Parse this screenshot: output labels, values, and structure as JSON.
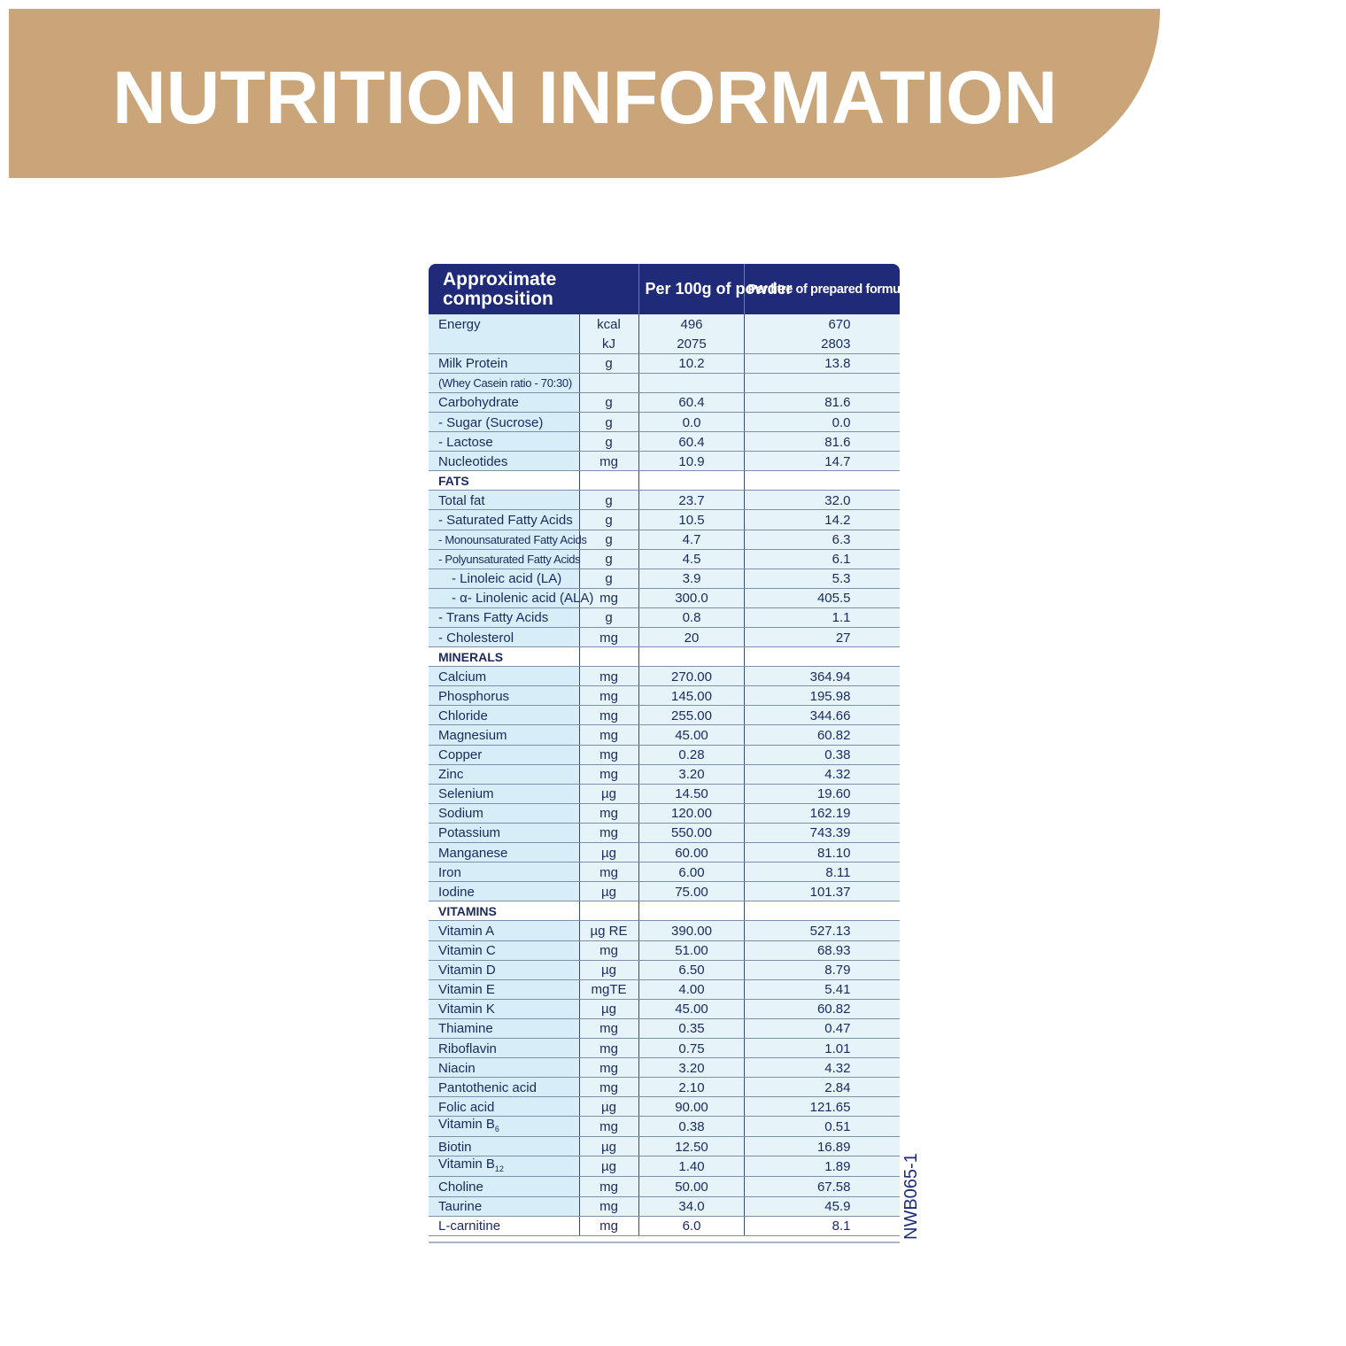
{
  "colors": {
    "banner": "#caa57a",
    "header": "#1f2a78",
    "text": "#1a2a5c",
    "row_shade": "#e6f4fa",
    "bottom_rule": "#aab4c8"
  },
  "banner": {
    "title": "NUTRITION INFORMATION"
  },
  "table": {
    "headers": [
      "Approximate composition",
      "Per 100g of powder",
      "Per litre of prepared formula"
    ],
    "rows": [
      {
        "name": "Energy",
        "unit": "kcal",
        "per100g": "496",
        "perLitre": "670",
        "style": "shade"
      },
      {
        "name": "",
        "unit": "kJ",
        "per100g": "2075",
        "perLitre": "2803",
        "style": "shade"
      },
      {
        "name": "Milk Protein",
        "unit": "g",
        "per100g": "10.2",
        "perLitre": "13.8",
        "style": "shade"
      },
      {
        "name": "(Whey Casein ratio - 70:30)",
        "unit": "",
        "per100g": "",
        "perLitre": "",
        "style": "shade",
        "small": true
      },
      {
        "name": "Carbohydrate",
        "unit": "g",
        "per100g": "60.4",
        "perLitre": "81.6",
        "style": "shade"
      },
      {
        "name": "- Sugar (Sucrose)",
        "unit": "g",
        "per100g": "0.0",
        "perLitre": "0.0",
        "style": "shade"
      },
      {
        "name": "- Lactose",
        "unit": "g",
        "per100g": "60.4",
        "perLitre": "81.6",
        "style": "shade"
      },
      {
        "name": "Nucleotides",
        "unit": "mg",
        "per100g": "10.9",
        "perLitre": "14.7",
        "style": "shade"
      },
      {
        "name": "FATS",
        "unit": "",
        "per100g": "",
        "perLitre": "",
        "style": "sec"
      },
      {
        "name": "Total fat",
        "unit": "g",
        "per100g": "23.7",
        "perLitre": "32.0",
        "style": "shade"
      },
      {
        "name": "- Saturated Fatty Acids",
        "unit": "g",
        "per100g": "10.5",
        "perLitre": "14.2",
        "style": "shade"
      },
      {
        "name": "- Monounsaturated Fatty Acids",
        "unit": "g",
        "per100g": "4.7",
        "perLitre": "6.3",
        "style": "shade",
        "small": true
      },
      {
        "name": "- Polyunsaturated Fatty Acids",
        "unit": "g",
        "per100g": "4.5",
        "perLitre": "6.1",
        "style": "shade",
        "small": true
      },
      {
        "name": "- Linoleic acid (LA)",
        "unit": "g",
        "per100g": "3.9",
        "perLitre": "5.3",
        "style": "shade",
        "indent": true
      },
      {
        "name": "- α- Linolenic acid (ALA)",
        "unit": "mg",
        "per100g": "300.0",
        "perLitre": "405.5",
        "style": "shade",
        "indent": true
      },
      {
        "name": "- Trans Fatty Acids",
        "unit": "g",
        "per100g": "0.8",
        "perLitre": "1.1",
        "style": "shade"
      },
      {
        "name": "- Cholesterol",
        "unit": "mg",
        "per100g": "20",
        "perLitre": "27",
        "style": "shade"
      },
      {
        "name": "MINERALS",
        "unit": "",
        "per100g": "",
        "perLitre": "",
        "style": "sec"
      },
      {
        "name": "Calcium",
        "unit": "mg",
        "per100g": "270.00",
        "perLitre": "364.94",
        "style": "shade"
      },
      {
        "name": "Phosphorus",
        "unit": "mg",
        "per100g": "145.00",
        "perLitre": "195.98",
        "style": "shade"
      },
      {
        "name": "Chloride",
        "unit": "mg",
        "per100g": "255.00",
        "perLitre": "344.66",
        "style": "shade"
      },
      {
        "name": "Magnesium",
        "unit": "mg",
        "per100g": "45.00",
        "perLitre": "60.82",
        "style": "shade"
      },
      {
        "name": "Copper",
        "unit": "mg",
        "per100g": "0.28",
        "perLitre": "0.38",
        "style": "shade"
      },
      {
        "name": "Zinc",
        "unit": "mg",
        "per100g": "3.20",
        "perLitre": "4.32",
        "style": "shade"
      },
      {
        "name": "Selenium",
        "unit": "µg",
        "per100g": "14.50",
        "perLitre": "19.60",
        "style": "shade"
      },
      {
        "name": "Sodium",
        "unit": "mg",
        "per100g": "120.00",
        "perLitre": "162.19",
        "style": "shade"
      },
      {
        "name": "Potassium",
        "unit": "mg",
        "per100g": "550.00",
        "perLitre": "743.39",
        "style": "shade"
      },
      {
        "name": "Manganese",
        "unit": "µg",
        "per100g": "60.00",
        "perLitre": "81.10",
        "style": "shade"
      },
      {
        "name": "Iron",
        "unit": "mg",
        "per100g": "6.00",
        "perLitre": "8.11",
        "style": "shade"
      },
      {
        "name": "Iodine",
        "unit": "µg",
        "per100g": "75.00",
        "perLitre": "101.37",
        "style": "shade"
      },
      {
        "name": "VITAMINS",
        "unit": "",
        "per100g": "",
        "perLitre": "",
        "style": "sec"
      },
      {
        "name": "Vitamin A",
        "unit": "µg RE",
        "per100g": "390.00",
        "perLitre": "527.13",
        "style": "shade"
      },
      {
        "name": "Vitamin C",
        "unit": "mg",
        "per100g": "51.00",
        "perLitre": "68.93",
        "style": "shade"
      },
      {
        "name": "Vitamin D",
        "unit": "µg",
        "per100g": "6.50",
        "perLitre": "8.79",
        "style": "shade"
      },
      {
        "name": "Vitamin E",
        "unit": "mgTE",
        "per100g": "4.00",
        "perLitre": "5.41",
        "style": "shade"
      },
      {
        "name": "Vitamin K",
        "unit": "µg",
        "per100g": "45.00",
        "perLitre": "60.82",
        "style": "shade"
      },
      {
        "name": "Thiamine",
        "unit": "mg",
        "per100g": "0.35",
        "perLitre": "0.47",
        "style": "shade"
      },
      {
        "name": "Riboflavin",
        "unit": "mg",
        "per100g": "0.75",
        "perLitre": "1.01",
        "style": "shade"
      },
      {
        "name": "Niacin",
        "unit": "mg",
        "per100g": "3.20",
        "perLitre": "4.32",
        "style": "shade"
      },
      {
        "name": "Pantothenic acid",
        "unit": "mg",
        "per100g": "2.10",
        "perLitre": "2.84",
        "style": "shade"
      },
      {
        "name": "Folic acid",
        "unit": "µg",
        "per100g": "90.00",
        "perLitre": "121.65",
        "style": "shade"
      },
      {
        "name": "Vitamin B",
        "sub": "6",
        "unit": "mg",
        "per100g": "0.38",
        "perLitre": "0.51",
        "style": "shade"
      },
      {
        "name": "Biotin",
        "unit": "µg",
        "per100g": "12.50",
        "perLitre": "16.89",
        "style": "shade"
      },
      {
        "name": "Vitamin B",
        "sub": "12",
        "unit": "µg",
        "per100g": "1.40",
        "perLitre": "1.89",
        "style": "shade"
      },
      {
        "name": "Choline",
        "unit": "mg",
        "per100g": "50.00",
        "perLitre": "67.58",
        "style": "shade"
      },
      {
        "name": "Taurine",
        "unit": "mg",
        "per100g": "34.0",
        "perLitre": "45.9",
        "style": "shade"
      },
      {
        "name": "L-carnitine",
        "unit": "mg",
        "per100g": "6.0",
        "perLitre": "8.1",
        "style": "plain"
      }
    ]
  },
  "code": "NWB065-1"
}
